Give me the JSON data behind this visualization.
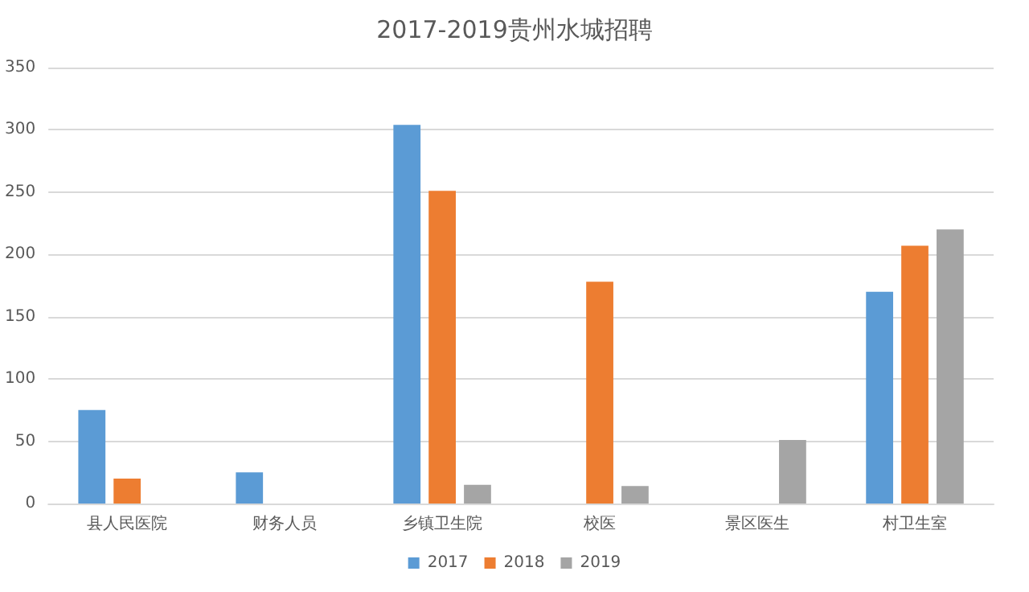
{
  "chart_data": {
    "type": "bar",
    "title": "2017-2019贵州水城招聘",
    "categories": [
      "县人民医院",
      "财务人员",
      "乡镇卫生院",
      "校医",
      "景区医生",
      "村卫生室"
    ],
    "series": [
      {
        "name": "2017",
        "color": "#5b9bd5",
        "values": [
          75,
          25,
          304,
          null,
          null,
          170
        ]
      },
      {
        "name": "2018",
        "color": "#ed7d31",
        "values": [
          20,
          null,
          251,
          178,
          null,
          207
        ]
      },
      {
        "name": "2019",
        "color": "#a5a5a5",
        "values": [
          null,
          null,
          15,
          14,
          51,
          220
        ]
      }
    ],
    "ylim": [
      0,
      350
    ],
    "yticks": [
      0,
      50,
      100,
      150,
      200,
      250,
      300,
      350
    ],
    "grid": "y",
    "legend": "bottom"
  }
}
